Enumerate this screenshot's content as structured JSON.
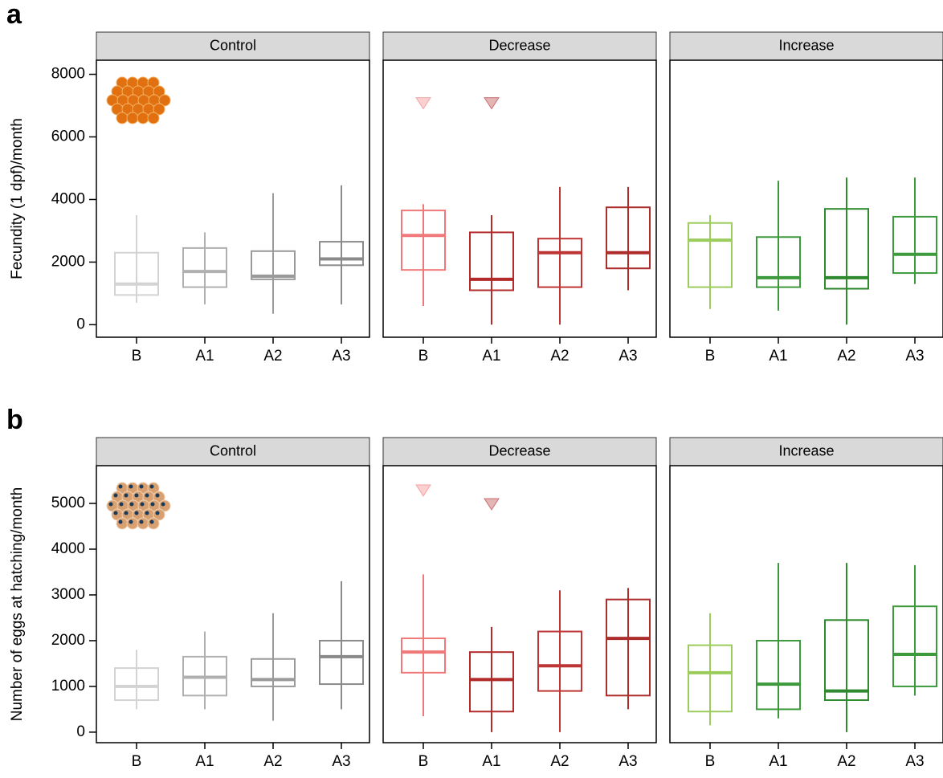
{
  "chart_data": [
    {
      "type": "boxplot",
      "panel_label": "a",
      "ylabel": "Fecundity (1 dpf)/month",
      "ylim": [
        -400,
        8450
      ],
      "yticks": [
        0,
        2000,
        4000,
        6000,
        8000
      ],
      "categories": [
        "B",
        "A1",
        "A2",
        "A3"
      ],
      "facets": [
        {
          "title": "Control",
          "colors": [
            "#d3d3d3",
            "#b0b0b0",
            "#9a9a9a",
            "#8a8a8a"
          ],
          "boxes": [
            {
              "min": 700,
              "q1": 950,
              "median": 1300,
              "q3": 2300,
              "max": 3500
            },
            {
              "min": 650,
              "q1": 1200,
              "median": 1700,
              "q3": 2450,
              "max": 2950
            },
            {
              "min": 350,
              "q1": 1450,
              "median": 1550,
              "q3": 2350,
              "max": 4200
            },
            {
              "min": 650,
              "q1": 1900,
              "median": 2100,
              "q3": 2650,
              "max": 4450
            }
          ]
        },
        {
          "title": "Decrease",
          "colors": [
            "#f07878",
            "#b22a2a",
            "#bf3434",
            "#ad2c2c"
          ],
          "boxes": [
            {
              "min": 600,
              "q1": 1750,
              "median": 2850,
              "q3": 3650,
              "max": 3850,
              "outliers": [
                7100
              ]
            },
            {
              "min": 0,
              "q1": 1100,
              "median": 1450,
              "q3": 2950,
              "max": 3500,
              "outliers": [
                7100
              ]
            },
            {
              "min": 0,
              "q1": 1200,
              "median": 2300,
              "q3": 2750,
              "max": 4400
            },
            {
              "min": 1100,
              "q1": 1800,
              "median": 2300,
              "q3": 3750,
              "max": 4400
            }
          ]
        },
        {
          "title": "Increase",
          "colors": [
            "#9ccc5c",
            "#3c9a3c",
            "#2f8a2f",
            "#3c9a3c"
          ],
          "boxes": [
            {
              "min": 500,
              "q1": 1200,
              "median": 2700,
              "q3": 3250,
              "max": 3500
            },
            {
              "min": 450,
              "q1": 1200,
              "median": 1500,
              "q3": 2800,
              "max": 4600
            },
            {
              "min": 0,
              "q1": 1150,
              "median": 1500,
              "q3": 3700,
              "max": 4700
            },
            {
              "min": 1300,
              "q1": 1650,
              "median": 2250,
              "q3": 3450,
              "max": 4700
            }
          ]
        }
      ]
    },
    {
      "type": "boxplot",
      "panel_label": "b",
      "ylabel": "Number of eggs at hatching/month",
      "ylim": [
        -230,
        5825
      ],
      "yticks": [
        0,
        1000,
        2000,
        3000,
        4000,
        5000
      ],
      "categories": [
        "B",
        "A1",
        "A2",
        "A3"
      ],
      "facets": [
        {
          "title": "Control",
          "colors": [
            "#d3d3d3",
            "#b0b0b0",
            "#9a9a9a",
            "#8a8a8a"
          ],
          "boxes": [
            {
              "min": 500,
              "q1": 700,
              "median": 1000,
              "q3": 1400,
              "max": 1800
            },
            {
              "min": 500,
              "q1": 800,
              "median": 1200,
              "q3": 1650,
              "max": 2200
            },
            {
              "min": 250,
              "q1": 1000,
              "median": 1150,
              "q3": 1600,
              "max": 2600
            },
            {
              "min": 500,
              "q1": 1050,
              "median": 1650,
              "q3": 2000,
              "max": 3300
            }
          ]
        },
        {
          "title": "Decrease",
          "colors": [
            "#f07878",
            "#b22a2a",
            "#bf3434",
            "#ad2c2c"
          ],
          "boxes": [
            {
              "min": 350,
              "q1": 1300,
              "median": 1750,
              "q3": 2050,
              "max": 3450,
              "outliers": [
                5300
              ]
            },
            {
              "min": 0,
              "q1": 450,
              "median": 1150,
              "q3": 1750,
              "max": 2300,
              "outliers": [
                5000
              ]
            },
            {
              "min": 0,
              "q1": 900,
              "median": 1450,
              "q3": 2200,
              "max": 3100
            },
            {
              "min": 500,
              "q1": 800,
              "median": 2050,
              "q3": 2900,
              "max": 3150
            }
          ]
        },
        {
          "title": "Increase",
          "colors": [
            "#9ccc5c",
            "#3c9a3c",
            "#2f8a2f",
            "#3c9a3c"
          ],
          "boxes": [
            {
              "min": 150,
              "q1": 450,
              "median": 1300,
              "q3": 1900,
              "max": 2600
            },
            {
              "min": 300,
              "q1": 500,
              "median": 1050,
              "q3": 2000,
              "max": 3700
            },
            {
              "min": 0,
              "q1": 700,
              "median": 900,
              "q3": 2450,
              "max": 3700
            },
            {
              "min": 800,
              "q1": 1000,
              "median": 1700,
              "q3": 2750,
              "max": 3650
            }
          ]
        }
      ]
    }
  ]
}
